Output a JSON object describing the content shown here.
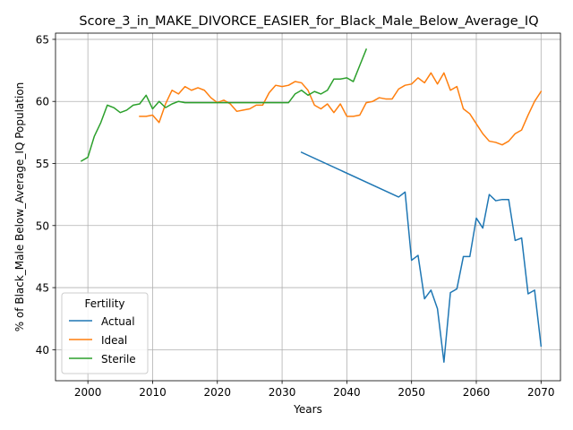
{
  "chart_data": {
    "type": "line",
    "title": "Score_3_in_MAKE_DIVORCE_EASIER_for_Black_Male_Below_Average_IQ",
    "xlabel": "Years",
    "ylabel": "% of Black_Male Below_Average_IQ Population",
    "xlim": [
      1995,
      2073
    ],
    "ylim": [
      37.5,
      65.5
    ],
    "xticks": [
      "2000",
      "2010",
      "2020",
      "2030",
      "2040",
      "2050",
      "2060",
      "2070"
    ],
    "yticks": [
      "40",
      "45",
      "50",
      "55",
      "60",
      "65"
    ],
    "grid": true,
    "legend": {
      "title": "Fertility",
      "placement": "lower-left"
    },
    "series": [
      {
        "name": "Actual",
        "color": "#1f77b4",
        "x": [
          2033,
          2048,
          2049,
          2050,
          2051,
          2052,
          2053,
          2054,
          2055,
          2056,
          2057,
          2058,
          2059,
          2060,
          2061,
          2062,
          2063,
          2064,
          2065,
          2066,
          2067,
          2068,
          2069,
          2070
        ],
        "y": [
          55.9,
          52.3,
          52.7,
          47.2,
          47.6,
          44.1,
          44.8,
          43.3,
          39.0,
          44.6,
          44.9,
          47.5,
          47.5,
          50.6,
          49.8,
          52.5,
          52.0,
          52.1,
          52.1,
          48.8,
          49.0,
          44.5,
          44.8,
          40.3
        ]
      },
      {
        "name": "Ideal",
        "color": "#ff7f0e",
        "x": [
          2008,
          2009,
          2010,
          2011,
          2012,
          2013,
          2014,
          2015,
          2016,
          2017,
          2018,
          2019,
          2020,
          2021,
          2022,
          2023,
          2024,
          2025,
          2026,
          2027,
          2028,
          2029,
          2030,
          2031,
          2032,
          2033,
          2034,
          2035,
          2036,
          2037,
          2038,
          2039,
          2040,
          2041,
          2042,
          2043,
          2044,
          2045,
          2046,
          2047,
          2048,
          2049,
          2050,
          2051,
          2052,
          2053,
          2054,
          2055,
          2056,
          2057,
          2058,
          2059,
          2060,
          2061,
          2062,
          2063,
          2064,
          2065,
          2066,
          2067,
          2068,
          2069,
          2070
        ],
        "y": [
          58.8,
          58.8,
          58.9,
          58.3,
          59.8,
          60.9,
          60.6,
          61.2,
          60.9,
          61.1,
          60.9,
          60.3,
          59.9,
          60.1,
          59.8,
          59.2,
          59.3,
          59.4,
          59.7,
          59.7,
          60.7,
          61.3,
          61.2,
          61.3,
          61.6,
          61.5,
          60.9,
          59.7,
          59.4,
          59.8,
          59.1,
          59.8,
          58.8,
          58.8,
          58.9,
          59.9,
          60.0,
          60.3,
          60.2,
          60.2,
          61.0,
          61.3,
          61.4,
          61.9,
          61.5,
          62.3,
          61.4,
          62.3,
          60.9,
          61.2,
          59.4,
          59.0,
          58.2,
          57.4,
          56.8,
          56.7,
          56.5,
          56.8,
          57.4,
          57.7,
          58.9,
          60.0,
          60.8
        ]
      },
      {
        "name": "Sterile",
        "color": "#2ca02c",
        "x": [
          1999,
          2000,
          2001,
          2002,
          2003,
          2004,
          2005,
          2006,
          2007,
          2008,
          2009,
          2010,
          2011,
          2012,
          2013,
          2014,
          2015,
          2016,
          2017,
          2018,
          2019,
          2020,
          2021,
          2022,
          2023,
          2024,
          2025,
          2026,
          2027,
          2028,
          2029,
          2030,
          2031,
          2032,
          2033,
          2034,
          2035,
          2036,
          2037,
          2038,
          2039,
          2040,
          2041,
          2042,
          2043
        ],
        "y": [
          55.2,
          55.5,
          57.2,
          58.3,
          59.7,
          59.5,
          59.1,
          59.3,
          59.7,
          59.8,
          60.5,
          59.4,
          60.0,
          59.5,
          59.8,
          60.0,
          59.9,
          59.9,
          59.9,
          59.9,
          59.9,
          59.9,
          59.9,
          59.9,
          59.9,
          59.9,
          59.9,
          59.9,
          59.9,
          59.9,
          59.9,
          59.9,
          59.9,
          60.6,
          60.9,
          60.5,
          60.8,
          60.6,
          60.9,
          61.8,
          61.8,
          61.9,
          61.6,
          62.9,
          64.2
        ]
      }
    ]
  }
}
